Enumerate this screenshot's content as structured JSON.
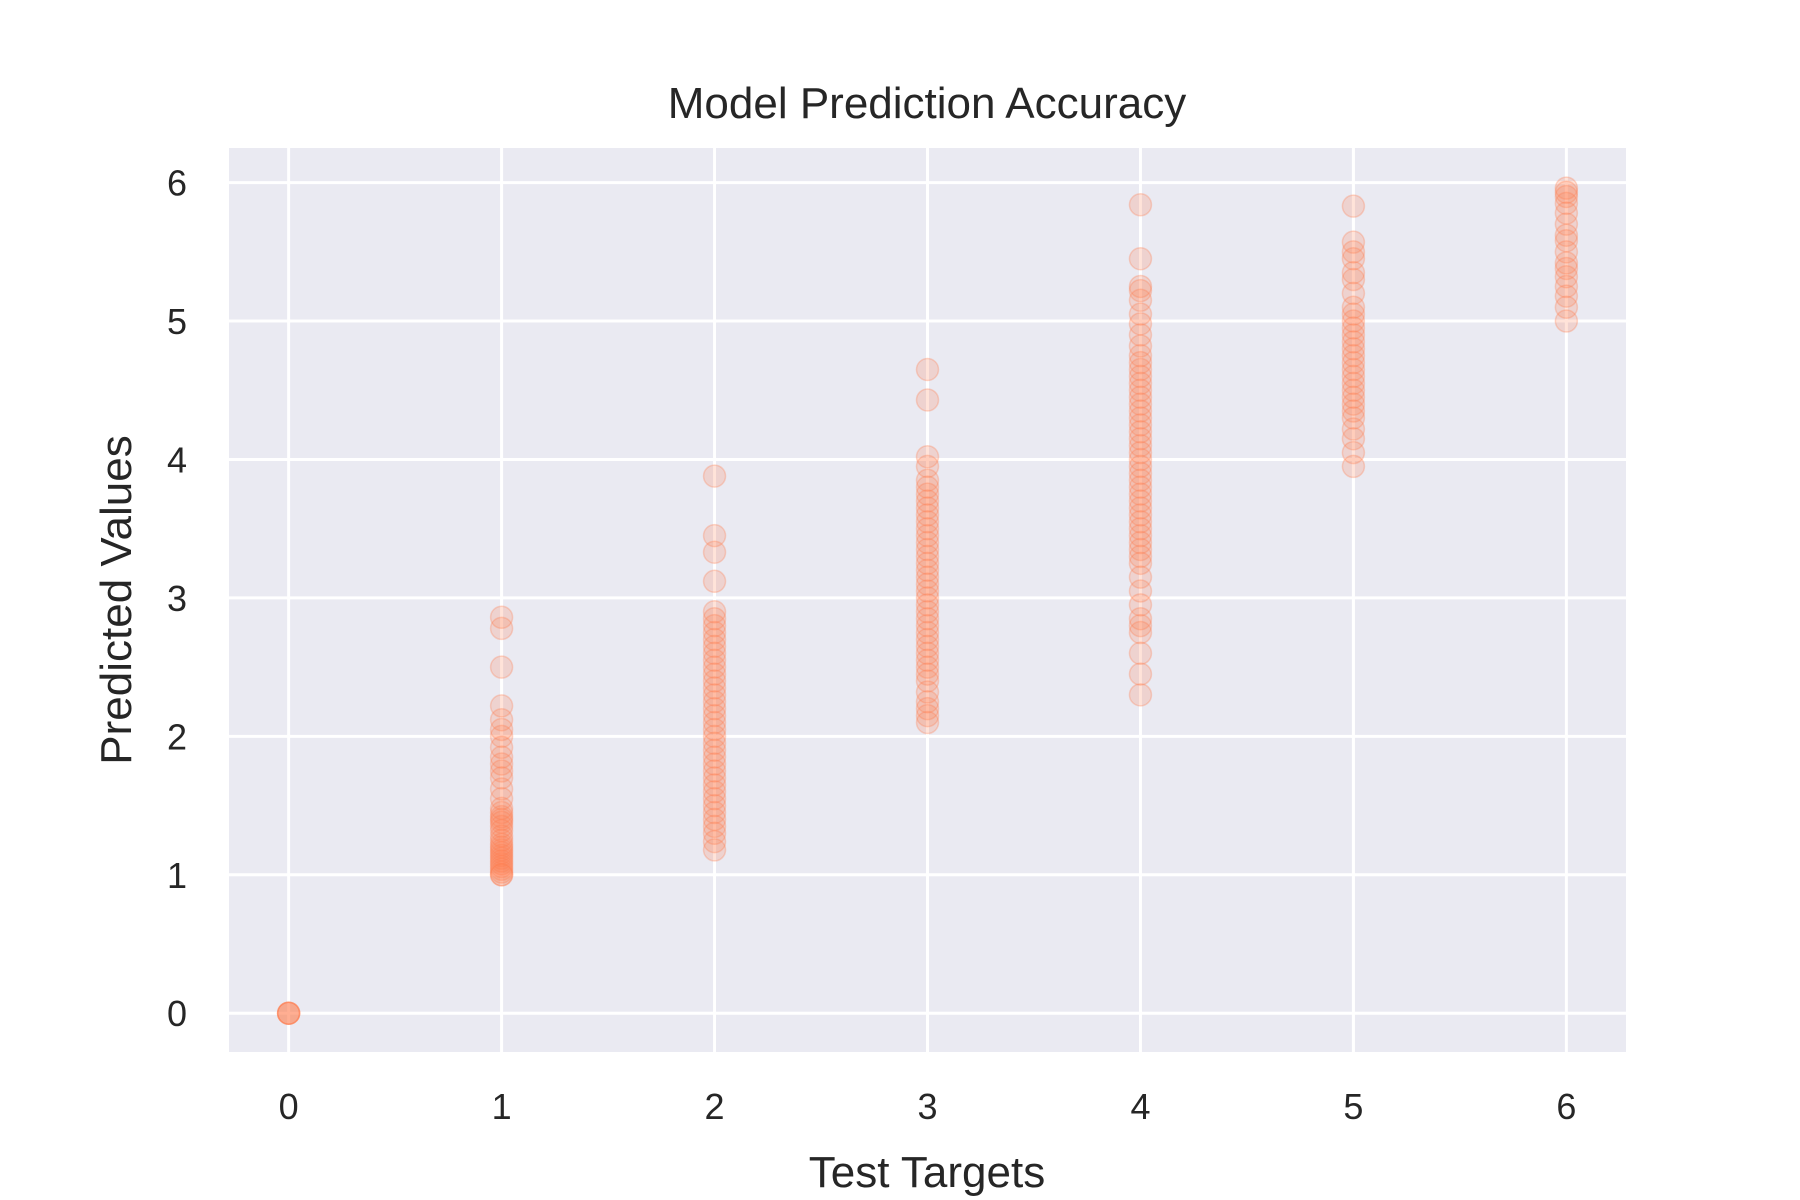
{
  "chart_data": {
    "type": "scatter",
    "title": "Model Prediction Accuracy",
    "xlabel": "Test Targets",
    "ylabel": "Predicted Values",
    "xlim": [
      -0.28,
      6.28
    ],
    "ylim": [
      -0.28,
      6.25
    ],
    "xticks": [
      0,
      1,
      2,
      3,
      4,
      5,
      6
    ],
    "yticks": [
      0,
      1,
      2,
      3,
      4,
      5,
      6
    ],
    "grid": true,
    "colors": {
      "marker": "#ff7f50",
      "plot_background": "#eaeaf2",
      "grid": "#ffffff",
      "text": "#262626"
    },
    "series": [
      {
        "points": [
          [
            0,
            0
          ],
          [
            0,
            0
          ],
          [
            0,
            0
          ],
          [
            0,
            0
          ],
          [
            1,
            1.0
          ],
          [
            1,
            1.0
          ],
          [
            1,
            1.02
          ],
          [
            1,
            1.04
          ],
          [
            1,
            1.06
          ],
          [
            1,
            1.08
          ],
          [
            1,
            1.1
          ],
          [
            1,
            1.12
          ],
          [
            1,
            1.14
          ],
          [
            1,
            1.16
          ],
          [
            1,
            1.18
          ],
          [
            1,
            1.2
          ],
          [
            1,
            1.22
          ],
          [
            1,
            1.25
          ],
          [
            1,
            1.28
          ],
          [
            1,
            1.32
          ],
          [
            1,
            1.35
          ],
          [
            1,
            1.38
          ],
          [
            1,
            1.4
          ],
          [
            1,
            1.42
          ],
          [
            1,
            1.45
          ],
          [
            1,
            1.48
          ],
          [
            1,
            1.55
          ],
          [
            1,
            1.62
          ],
          [
            1,
            1.7
          ],
          [
            1,
            1.75
          ],
          [
            1,
            1.8
          ],
          [
            1,
            1.85
          ],
          [
            1,
            1.92
          ],
          [
            1,
            2.0
          ],
          [
            1,
            2.05
          ],
          [
            1,
            2.12
          ],
          [
            1,
            2.22
          ],
          [
            1,
            2.5
          ],
          [
            1,
            2.78
          ],
          [
            1,
            2.86
          ],
          [
            2,
            1.18
          ],
          [
            2,
            1.24
          ],
          [
            2,
            1.3
          ],
          [
            2,
            1.35
          ],
          [
            2,
            1.4
          ],
          [
            2,
            1.45
          ],
          [
            2,
            1.5
          ],
          [
            2,
            1.55
          ],
          [
            2,
            1.6
          ],
          [
            2,
            1.65
          ],
          [
            2,
            1.7
          ],
          [
            2,
            1.75
          ],
          [
            2,
            1.8
          ],
          [
            2,
            1.85
          ],
          [
            2,
            1.9
          ],
          [
            2,
            1.95
          ],
          [
            2,
            2.0
          ],
          [
            2,
            2.05
          ],
          [
            2,
            2.1
          ],
          [
            2,
            2.15
          ],
          [
            2,
            2.2
          ],
          [
            2,
            2.25
          ],
          [
            2,
            2.3
          ],
          [
            2,
            2.35
          ],
          [
            2,
            2.4
          ],
          [
            2,
            2.45
          ],
          [
            2,
            2.5
          ],
          [
            2,
            2.55
          ],
          [
            2,
            2.6
          ],
          [
            2,
            2.65
          ],
          [
            2,
            2.7
          ],
          [
            2,
            2.75
          ],
          [
            2,
            2.8
          ],
          [
            2,
            2.85
          ],
          [
            2,
            2.9
          ],
          [
            2,
            3.12
          ],
          [
            2,
            3.33
          ],
          [
            2,
            3.45
          ],
          [
            2,
            3.88
          ],
          [
            3,
            2.1
          ],
          [
            3,
            2.15
          ],
          [
            3,
            2.2
          ],
          [
            3,
            2.25
          ],
          [
            3,
            2.32
          ],
          [
            3,
            2.4
          ],
          [
            3,
            2.45
          ],
          [
            3,
            2.5
          ],
          [
            3,
            2.55
          ],
          [
            3,
            2.6
          ],
          [
            3,
            2.65
          ],
          [
            3,
            2.7
          ],
          [
            3,
            2.75
          ],
          [
            3,
            2.8
          ],
          [
            3,
            2.85
          ],
          [
            3,
            2.9
          ],
          [
            3,
            2.95
          ],
          [
            3,
            3.0
          ],
          [
            3,
            3.05
          ],
          [
            3,
            3.1
          ],
          [
            3,
            3.15
          ],
          [
            3,
            3.2
          ],
          [
            3,
            3.25
          ],
          [
            3,
            3.3
          ],
          [
            3,
            3.35
          ],
          [
            3,
            3.4
          ],
          [
            3,
            3.45
          ],
          [
            3,
            3.5
          ],
          [
            3,
            3.55
          ],
          [
            3,
            3.6
          ],
          [
            3,
            3.65
          ],
          [
            3,
            3.7
          ],
          [
            3,
            3.75
          ],
          [
            3,
            3.8
          ],
          [
            3,
            3.85
          ],
          [
            3,
            3.95
          ],
          [
            3,
            4.02
          ],
          [
            3,
            4.43
          ],
          [
            3,
            4.65
          ],
          [
            4,
            2.3
          ],
          [
            4,
            2.45
          ],
          [
            4,
            2.6
          ],
          [
            4,
            2.75
          ],
          [
            4,
            2.8
          ],
          [
            4,
            2.85
          ],
          [
            4,
            2.95
          ],
          [
            4,
            3.05
          ],
          [
            4,
            3.15
          ],
          [
            4,
            3.25
          ],
          [
            4,
            3.3
          ],
          [
            4,
            3.35
          ],
          [
            4,
            3.4
          ],
          [
            4,
            3.45
          ],
          [
            4,
            3.5
          ],
          [
            4,
            3.55
          ],
          [
            4,
            3.6
          ],
          [
            4,
            3.65
          ],
          [
            4,
            3.7
          ],
          [
            4,
            3.75
          ],
          [
            4,
            3.8
          ],
          [
            4,
            3.85
          ],
          [
            4,
            3.9
          ],
          [
            4,
            3.95
          ],
          [
            4,
            4.0
          ],
          [
            4,
            4.05
          ],
          [
            4,
            4.1
          ],
          [
            4,
            4.15
          ],
          [
            4,
            4.2
          ],
          [
            4,
            4.25
          ],
          [
            4,
            4.3
          ],
          [
            4,
            4.35
          ],
          [
            4,
            4.4
          ],
          [
            4,
            4.45
          ],
          [
            4,
            4.5
          ],
          [
            4,
            4.55
          ],
          [
            4,
            4.6
          ],
          [
            4,
            4.65
          ],
          [
            4,
            4.7
          ],
          [
            4,
            4.75
          ],
          [
            4,
            4.82
          ],
          [
            4,
            4.9
          ],
          [
            4,
            4.98
          ],
          [
            4,
            5.05
          ],
          [
            4,
            5.15
          ],
          [
            4,
            5.22
          ],
          [
            4,
            5.25
          ],
          [
            4,
            5.45
          ],
          [
            4,
            5.84
          ],
          [
            5,
            3.95
          ],
          [
            5,
            4.05
          ],
          [
            5,
            4.15
          ],
          [
            5,
            4.22
          ],
          [
            5,
            4.3
          ],
          [
            5,
            4.35
          ],
          [
            5,
            4.4
          ],
          [
            5,
            4.45
          ],
          [
            5,
            4.5
          ],
          [
            5,
            4.55
          ],
          [
            5,
            4.6
          ],
          [
            5,
            4.65
          ],
          [
            5,
            4.7
          ],
          [
            5,
            4.75
          ],
          [
            5,
            4.8
          ],
          [
            5,
            4.85
          ],
          [
            5,
            4.9
          ],
          [
            5,
            4.95
          ],
          [
            5,
            5.0
          ],
          [
            5,
            5.05
          ],
          [
            5,
            5.1
          ],
          [
            5,
            5.2
          ],
          [
            5,
            5.3
          ],
          [
            5,
            5.35
          ],
          [
            5,
            5.45
          ],
          [
            5,
            5.5
          ],
          [
            5,
            5.57
          ],
          [
            5,
            5.83
          ],
          [
            6,
            5.0
          ],
          [
            6,
            5.1
          ],
          [
            6,
            5.18
          ],
          [
            6,
            5.25
          ],
          [
            6,
            5.32
          ],
          [
            6,
            5.38
          ],
          [
            6,
            5.42
          ],
          [
            6,
            5.5
          ],
          [
            6,
            5.58
          ],
          [
            6,
            5.62
          ],
          [
            6,
            5.7
          ],
          [
            6,
            5.78
          ],
          [
            6,
            5.85
          ],
          [
            6,
            5.9
          ],
          [
            6,
            5.93
          ],
          [
            6,
            5.96
          ]
        ]
      }
    ]
  }
}
